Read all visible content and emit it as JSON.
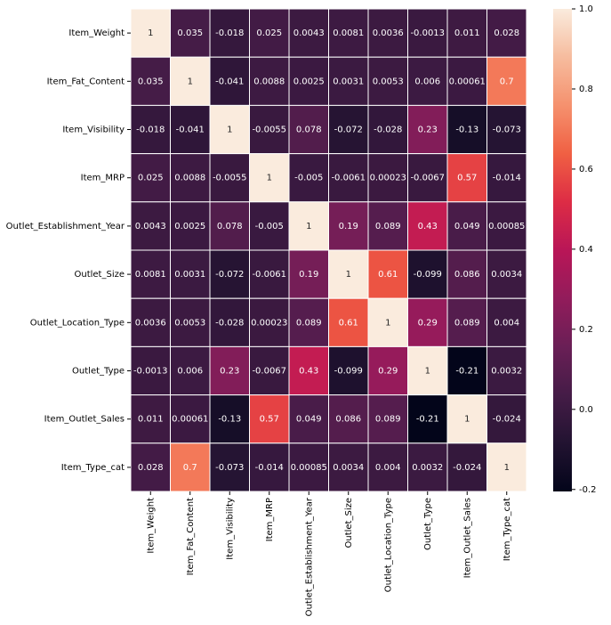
{
  "chart_data": {
    "type": "heatmap",
    "x_categories": [
      "Item_Weight",
      "Item_Fat_Content",
      "Item_Visibility",
      "Item_MRP",
      "Outlet_Establishment_Year",
      "Outlet_Size",
      "Outlet_Location_Type",
      "Outlet_Type",
      "Item_Outlet_Sales",
      "Item_Type_cat"
    ],
    "y_categories": [
      "Item_Weight",
      "Item_Fat_Content",
      "Item_Visibility",
      "Item_MRP",
      "Outlet_Establishment_Year",
      "Outlet_Size",
      "Outlet_Location_Type",
      "Outlet_Type",
      "Item_Outlet_Sales",
      "Item_Type_cat"
    ],
    "values": [
      [
        1,
        0.035,
        -0.018,
        0.025,
        0.0043,
        0.0081,
        0.0036,
        -0.0013,
        0.011,
        0.028
      ],
      [
        0.035,
        1,
        -0.041,
        0.0088,
        0.0025,
        0.0031,
        0.0053,
        0.006,
        0.00061,
        0.7
      ],
      [
        -0.018,
        -0.041,
        1,
        -0.0055,
        0.078,
        -0.072,
        -0.028,
        0.23,
        -0.13,
        -0.073
      ],
      [
        0.025,
        0.0088,
        -0.0055,
        1,
        -0.005,
        -0.0061,
        0.00023,
        -0.0067,
        0.57,
        -0.014
      ],
      [
        0.0043,
        0.0025,
        0.078,
        -0.005,
        1,
        0.19,
        0.089,
        0.43,
        0.049,
        0.00085
      ],
      [
        0.0081,
        0.0031,
        -0.072,
        -0.0061,
        0.19,
        1,
        0.61,
        -0.099,
        0.086,
        0.0034
      ],
      [
        0.0036,
        0.0053,
        -0.028,
        0.00023,
        0.089,
        0.61,
        1,
        0.29,
        0.089,
        0.004
      ],
      [
        -0.0013,
        0.006,
        0.23,
        -0.0067,
        0.43,
        -0.099,
        0.29,
        1,
        -0.21,
        0.0032
      ],
      [
        0.011,
        0.00061,
        -0.13,
        0.57,
        0.049,
        0.086,
        0.089,
        -0.21,
        1,
        -0.024
      ],
      [
        0.028,
        0.7,
        -0.073,
        -0.014,
        0.00085,
        0.0034,
        0.004,
        0.0032,
        -0.024,
        1
      ]
    ],
    "colormap": [
      "#03051a",
      "#221331",
      "#451c47",
      "#6a1f56",
      "#921c5b",
      "#b91657",
      "#dd2c45",
      "#f06043",
      "#f5916e",
      "#f6bc9e",
      "#faebdd"
    ],
    "clim": [
      -0.205,
      1
    ],
    "cticks": [
      -0.2,
      {
        "value": 0,
        "label": "0.0"
      },
      0.2,
      0.4,
      0.6,
      0.8,
      {
        "value": 1,
        "label": "1.0"
      }
    ]
  }
}
